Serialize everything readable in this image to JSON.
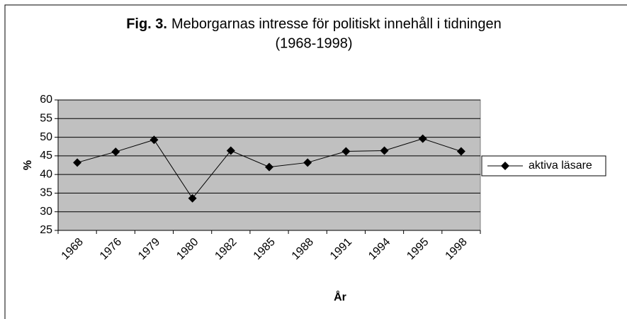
{
  "chart_data": {
    "type": "line",
    "figure_label": "Fig. 3.",
    "title": "Meborgarnas intresse för politiskt innehåll i tidningen",
    "subtitle": "(1968-1998)",
    "x_label": "År",
    "y_label": "%",
    "categories": [
      "1968",
      "1976",
      "1979",
      "1980",
      "1982",
      "1985",
      "1988",
      "1991",
      "1994",
      "1995",
      "1998"
    ],
    "series": [
      {
        "name": "aktiva läsare",
        "color": "#000000",
        "values": [
          43.2,
          46.1,
          49.3,
          33.6,
          46.4,
          42.0,
          43.2,
          46.2,
          46.4,
          49.6,
          46.2
        ]
      }
    ],
    "ylim": [
      25,
      60
    ],
    "yticks": [
      25,
      30,
      35,
      40,
      45,
      50,
      55,
      60
    ],
    "grid": true,
    "plot_background": "#c0c0c0",
    "legend": "right"
  }
}
